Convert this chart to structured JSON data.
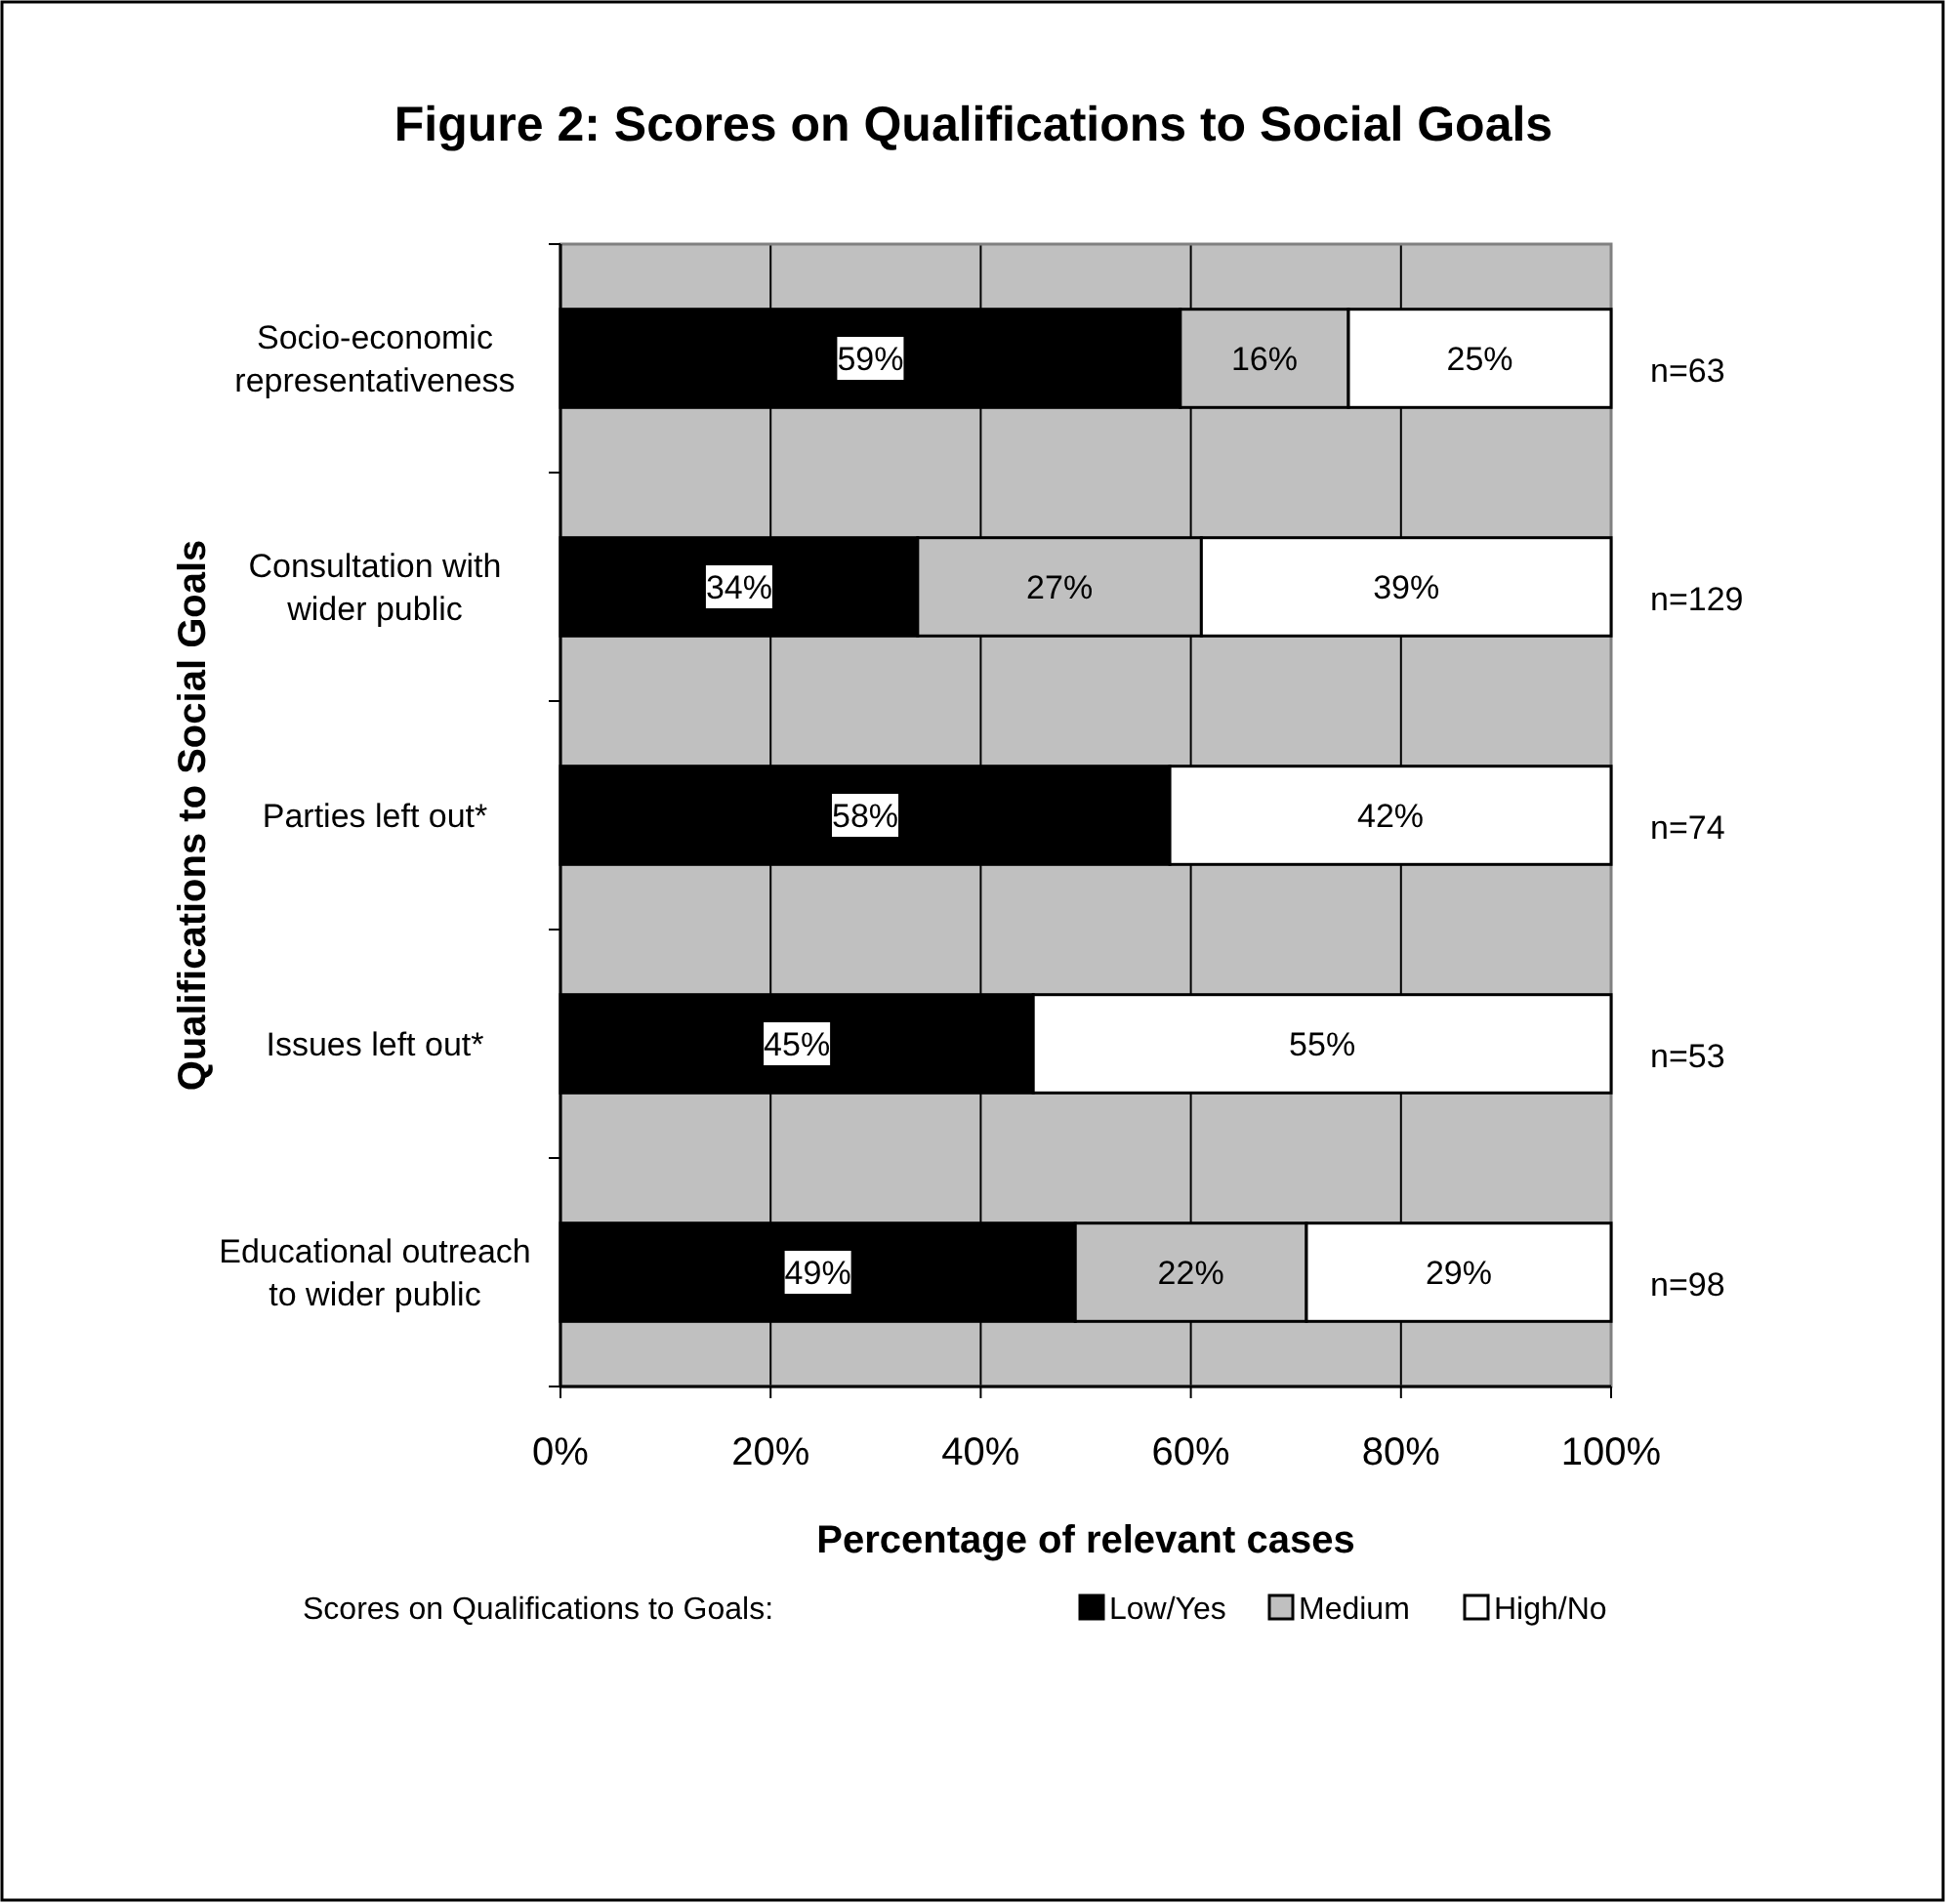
{
  "chart_data": {
    "type": "bar",
    "orientation": "horizontal",
    "stacked": true,
    "title": "Figure 2:  Scores on Qualifications to Social Goals",
    "xlabel": "Percentage of relevant cases",
    "ylabel": "Qualifications to Social Goals",
    "legend_title": "Scores on Qualifications to Goals:",
    "legend": "bottom",
    "grid": "x",
    "categories": [
      "Socio-economic representativeness",
      "Consultation with wider public",
      "Parties left out*",
      "Issues left out*",
      "Educational outreach to wider public"
    ],
    "series": [
      {
        "name": "Low/Yes",
        "color": "#000000",
        "values": [
          59,
          34,
          58,
          45,
          49
        ],
        "value_labels": [
          "59%",
          "34%",
          "58%",
          "45%",
          "49%"
        ]
      },
      {
        "name": "Medium",
        "color": "#c0c0c0",
        "values": [
          16,
          27,
          null,
          null,
          22
        ],
        "value_labels": [
          "16%",
          "27%",
          null,
          null,
          "22%"
        ]
      },
      {
        "name": "High/No",
        "color": "#ffffff",
        "values": [
          25,
          39,
          42,
          55,
          29
        ],
        "value_labels": [
          "25%",
          "39%",
          "42%",
          "55%",
          "29%"
        ]
      }
    ],
    "xlim": [
      0,
      100
    ],
    "xticks": [
      {
        "value": 0,
        "label": "0%"
      },
      {
        "value": 20,
        "label": "20%"
      },
      {
        "value": 40,
        "label": "40%"
      },
      {
        "value": 60,
        "label": "60%"
      },
      {
        "value": 80,
        "label": "80%"
      },
      {
        "value": 100,
        "label": "100%"
      }
    ],
    "annotations": [
      "n=63",
      "n=129",
      "n=74",
      "n=53",
      "n=98"
    ]
  }
}
